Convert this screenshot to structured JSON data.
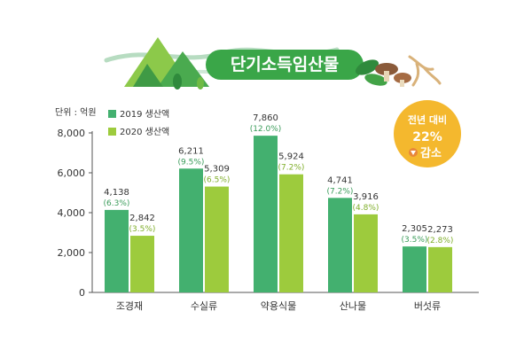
{
  "header": {
    "title": "단기소득임산물",
    "colors": {
      "banner": "#3aa648",
      "mountain_dark": "#4aaa4f",
      "mountain_light": "#8cc94a",
      "wave": "#b7dcc1"
    }
  },
  "summary_badge": {
    "line1": "전년 대비",
    "line2": "22%",
    "line3": "감소",
    "icon": "down-arrow-icon",
    "color": "#f4b82e"
  },
  "chart_data": {
    "type": "bar",
    "unit_label": "단위 : 억원",
    "categories": [
      "조경재",
      "수실류",
      "약용식물",
      "산나물",
      "버섯류"
    ],
    "series": [
      {
        "name": "2019 생산액",
        "color": "#43b06f",
        "values": [
          4138,
          6211,
          7860,
          4741,
          2305
        ],
        "value_labels": [
          "4,138",
          "6,211",
          "7,860",
          "4,741",
          "2,305"
        ],
        "share_labels": [
          "(6.3%)",
          "(9.5%)",
          "(12.0%)",
          "(7.2%)",
          "(3.5%)"
        ]
      },
      {
        "name": "2020 생산액",
        "color": "#9dcb3d",
        "values": [
          2842,
          5309,
          5924,
          3916,
          2273
        ],
        "value_labels": [
          "2,842",
          "5,309",
          "5,924",
          "3,916",
          "2,273"
        ],
        "share_labels": [
          "(3.5%)",
          "(6.5%)",
          "(7.2%)",
          "(4.8%)",
          "(2.8%)"
        ]
      }
    ],
    "ylim": [
      0,
      8000
    ],
    "yticks": [
      0,
      2000,
      4000,
      6000,
      8000
    ],
    "ytick_labels": [
      "0",
      "2,000",
      "4,000",
      "6,000",
      "8,000"
    ],
    "legend_position": "top-left",
    "grid": false
  }
}
